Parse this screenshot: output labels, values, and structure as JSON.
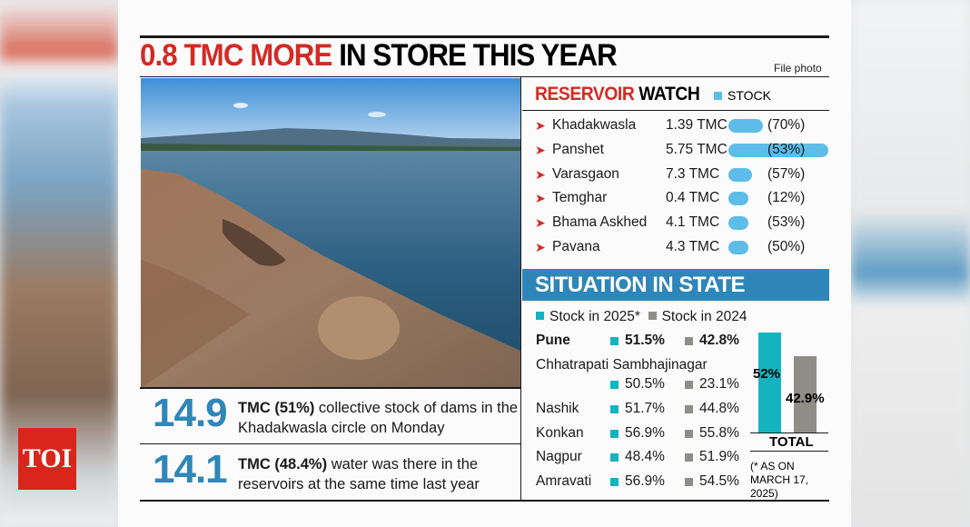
{
  "header": {
    "title_red": "0.8 TMC MORE",
    "title_black": "IN STORE THIS YEAR",
    "credit": "File photo"
  },
  "facts": [
    {
      "number": "14.9",
      "bold": "TMC (51%)",
      "text": " collective stock of dams in the Khadakwasla circle on Monday"
    },
    {
      "number": "14.1",
      "bold": "TMC (48.4%)",
      "text": " water was there in the reservoirs at the same time last year"
    }
  ],
  "reservoir_watch": {
    "title_red": "RESERVOIR",
    "title_black": "WATCH",
    "legend": "STOCK",
    "rows": [
      {
        "name": "Khadakwasla",
        "stock": "1.39 TMC",
        "percent": "(70%)"
      },
      {
        "name": "Panshet",
        "stock": "5.75 TMC",
        "percent": "(53%)"
      },
      {
        "name": "Varasgaon",
        "stock": "7.3 TMC",
        "percent": "(57%)"
      },
      {
        "name": "Temghar",
        "stock": "0.4 TMC",
        "percent": "(12%)"
      },
      {
        "name": "Bhama Askhed",
        "stock": "4.1 TMC",
        "percent": "(53%)"
      },
      {
        "name": "Pavana",
        "stock": "4.3 TMC",
        "percent": "(50%)"
      }
    ]
  },
  "situation": {
    "title": "SITUATION IN STATE",
    "legend": [
      "Stock in 2025*",
      "Stock in 2024"
    ],
    "rows": [
      {
        "name": "Pune",
        "y2025": "51.5%",
        "y2024": "42.8%"
      },
      {
        "name": "Chhatrapati Sambhajinagar",
        "y2025": "50.5%",
        "y2024": "23.1%"
      },
      {
        "name": "Nashik",
        "y2025": "51.7%",
        "y2024": "44.8%"
      },
      {
        "name": "Konkan",
        "y2025": "56.9%",
        "y2024": "55.8%"
      },
      {
        "name": "Nagpur",
        "y2025": "48.4%",
        "y2024": "51.9%"
      },
      {
        "name": "Amravati",
        "y2025": "56.9%",
        "y2024": "54.5%"
      }
    ],
    "total": {
      "label": "TOTAL",
      "y2025": "52%",
      "y2024": "42.9%"
    },
    "note": "(* AS ON MARCH 17, 2025)"
  },
  "logo": "TOI"
}
